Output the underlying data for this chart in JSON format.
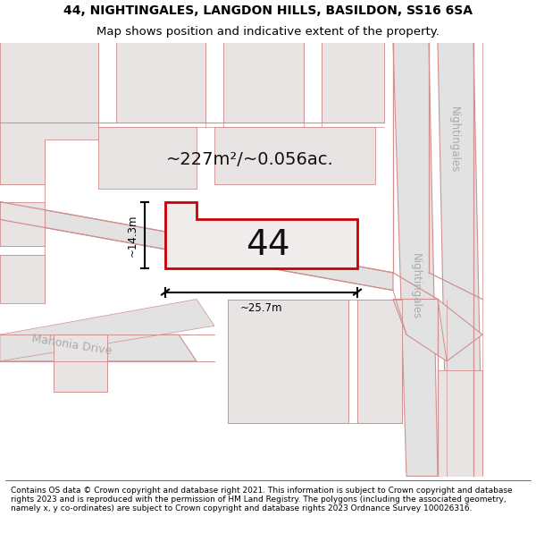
{
  "title_line1": "44, NIGHTINGALES, LANGDON HILLS, BASILDON, SS16 6SA",
  "title_line2": "Map shows position and indicative extent of the property.",
  "footer_text": "Contains OS data © Crown copyright and database right 2021. This information is subject to Crown copyright and database rights 2023 and is reproduced with the permission of HM Land Registry. The polygons (including the associated geometry, namely x, y co-ordinates) are subject to Crown copyright and database rights 2023 Ordnance Survey 100026316.",
  "area_label": "~227m²/~0.056ac.",
  "property_number": "44",
  "dim_width": "~25.7m",
  "dim_height": "~14.3m",
  "bg_color": "#f5efef",
  "road_fill": "#e2e2e2",
  "block_fill": "#e8e4e4",
  "red_color": "#cc0000",
  "road_line": "#d09090",
  "gray_text": "#aaaaaa",
  "title_fontsize": 10,
  "footer_fontsize": 6.5
}
